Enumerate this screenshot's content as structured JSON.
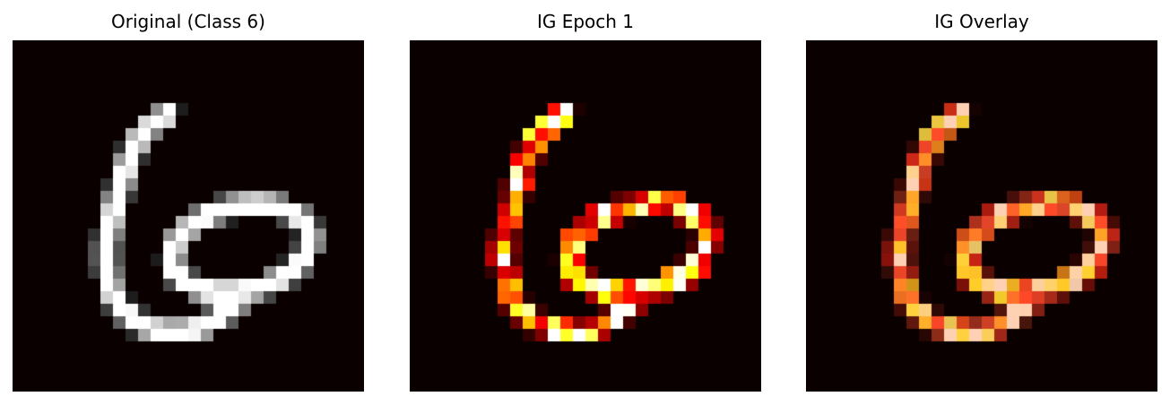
{
  "panels": [
    {
      "title": "Original (Class 6)",
      "colormap": "gray"
    },
    {
      "title": "IG Epoch 1",
      "colormap": "hot"
    },
    {
      "title": "IG Overlay",
      "colormap": "overlay"
    }
  ],
  "colors": {
    "figure_background": "#ffffff",
    "image_background": "#0a0000"
  },
  "grid_size": 28
}
